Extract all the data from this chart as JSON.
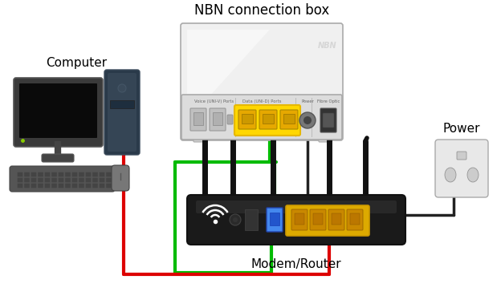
{
  "title": "NBN connection box",
  "label_computer": "Computer",
  "label_router": "Modem/Router",
  "label_power": "Power",
  "bg_color": "#ffffff",
  "text_color": "#000000",
  "cable_red": "#dd0000",
  "cable_green": "#00bb00",
  "cable_black": "#222222",
  "cable_blue": "#0055cc",
  "font_title": 12,
  "font_label": 10
}
